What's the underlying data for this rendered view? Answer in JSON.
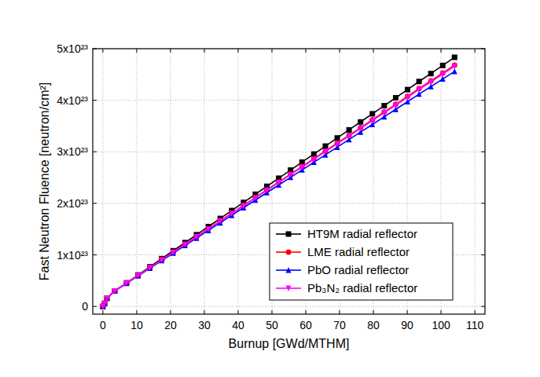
{
  "chart_data": {
    "type": "line",
    "x_label": "Burnup [GWd/MTHM]",
    "y_label": "Fast Neutron Fluence [neutron/cm²]",
    "x": [
      0,
      0.5,
      1.2,
      3.5,
      7,
      10.4,
      13.9,
      17.4,
      20.8,
      24.3,
      27.7,
      31.2,
      34.7,
      38.1,
      41.6,
      45.1,
      48.5,
      52,
      55.5,
      58.9,
      62.4,
      65.8,
      69.3,
      72.8,
      76.2,
      79.7,
      83.2,
      86.6,
      90.1,
      93.5,
      97,
      100.5,
      104
    ],
    "series": [
      {
        "name": "HT9M radial reflector",
        "color": "#000000",
        "marker": "square",
        "line_style": "solid",
        "values": [
          0,
          6e+21,
          1.6e+22,
          3e+22,
          4.58e+22,
          6.11e+22,
          7.69e+22,
          9.27e+22,
          1.08e+23,
          1.238e+23,
          1.391e+23,
          1.549e+23,
          1.707e+23,
          1.86e+23,
          2.018e+23,
          2.176e+23,
          2.33e+23,
          2.487e+23,
          2.645e+23,
          2.799e+23,
          2.956e+23,
          3.11e+23,
          3.268e+23,
          3.425e+23,
          3.579e+23,
          3.737e+23,
          3.894e+23,
          4.048e+23,
          4.206e+23,
          4.364e+23,
          4.517e+23,
          4.675e+23,
          4.833e+23
        ]
      },
      {
        "name": "LME radial reflector",
        "color": "#ff0000",
        "marker": "circle",
        "line_style": "solid",
        "values": [
          0,
          6e+21,
          1.6e+22,
          3e+22,
          4.53e+22,
          6.01e+22,
          7.53e+22,
          9.06e+22,
          1.054e+23,
          1.206e+23,
          1.355e+23,
          1.507e+23,
          1.66e+23,
          1.808e+23,
          1.96e+23,
          2.113e+23,
          2.261e+23,
          2.414e+23,
          2.566e+23,
          2.714e+23,
          2.867e+23,
          3.015e+23,
          3.168e+23,
          3.32e+23,
          3.468e+23,
          3.621e+23,
          3.773e+23,
          3.921e+23,
          4.074e+23,
          4.227e+23,
          4.375e+23,
          4.527e+23,
          4.68e+23
        ]
      },
      {
        "name": "PbO radial reflector",
        "color": "#0000ff",
        "marker": "triangle-up",
        "line_style": "solid",
        "values": [
          0,
          6e+21,
          1.6e+22,
          3e+22,
          4.48e+22,
          5.92e+22,
          7.41e+22,
          8.89e+22,
          1.033e+23,
          1.182e+23,
          1.326e+23,
          1.474e+23,
          1.623e+23,
          1.767e+23,
          1.915e+23,
          2.063e+23,
          2.208e+23,
          2.356e+23,
          2.504e+23,
          2.648e+23,
          2.797e+23,
          2.941e+23,
          3.089e+23,
          3.238e+23,
          3.382e+23,
          3.53e+23,
          3.679e+23,
          3.823e+23,
          3.971e+23,
          4.119e+23,
          4.264e+23,
          4.412e+23,
          4.56e+23
        ]
      },
      {
        "name": "Pb₃N₂ radial reflector",
        "color": "#ff00ff",
        "marker": "triangle-down",
        "line_style": "solid",
        "values": [
          0,
          6e+21,
          1.6e+22,
          3e+22,
          4.52e+22,
          6e+22,
          7.51e+22,
          9.03e+22,
          1.051e+23,
          1.202e+23,
          1.35e+23,
          1.501e+23,
          1.654e+23,
          1.801e+23,
          1.952e+23,
          2.105e+23,
          2.252e+23,
          2.404e+23,
          2.556e+23,
          2.703e+23,
          2.855e+23,
          3.003e+23,
          3.155e+23,
          3.306e+23,
          3.453e+23,
          3.606e+23,
          3.757e+23,
          3.904e+23,
          4.057e+23,
          4.209e+23,
          4.356e+23,
          4.508e+23,
          4.66e+23
        ]
      }
    ],
    "xlim": [
      -3,
      113
    ],
    "ylim": [
      -1.5e+22,
      5e+23
    ],
    "xticks": [
      0,
      10,
      20,
      30,
      40,
      50,
      60,
      70,
      80,
      90,
      100,
      110
    ],
    "yticks": [
      0,
      {
        "value": 1e+23,
        "label": "1x10²³"
      },
      {
        "value": 2e+23,
        "label": "2x10²³"
      },
      {
        "value": 3e+23,
        "label": "3x10²³"
      },
      {
        "value": 4e+23,
        "label": "4x10²³"
      },
      {
        "value": 5e+23,
        "label": "5x10²³"
      }
    ],
    "grid": true,
    "legend": "lower right"
  }
}
